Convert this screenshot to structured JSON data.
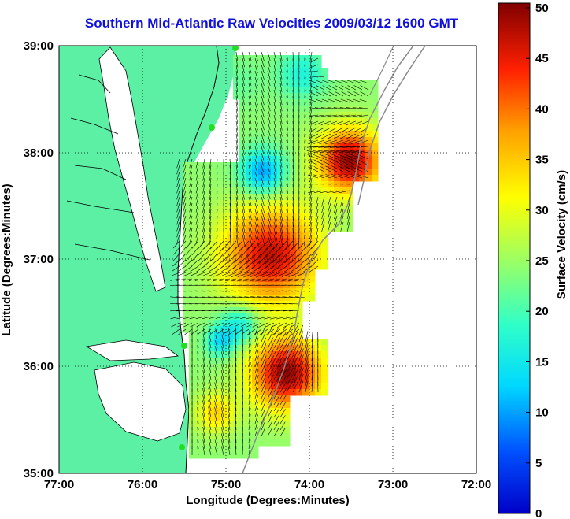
{
  "title": "Southern Mid-Atlantic Raw Velocities 2009/03/12 1600 GMT",
  "axes": {
    "x_label": "Longitude (Degrees:Minutes)",
    "y_label": "Latitude (Degrees:Minutes)",
    "x_ticks": [
      "77:00",
      "76:00",
      "75:00",
      "74:00",
      "73:00",
      "72:00"
    ],
    "y_ticks": [
      "39:00",
      "38:00",
      "37:00",
      "36:00",
      "35:00"
    ],
    "x_range_deg_west": [
      77,
      72
    ],
    "y_range_deg_north": [
      35,
      39
    ],
    "grid": "dotted"
  },
  "colorbar": {
    "label": "Surface Velocity (cm/s)",
    "ticks": [
      "50",
      "45",
      "40",
      "35",
      "30",
      "25",
      "20",
      "15",
      "10",
      "5",
      "0"
    ],
    "range": [
      0,
      50
    ],
    "colormap": "jet"
  },
  "colors": {
    "land": "#5cf0a4",
    "water": "#ffffff",
    "title": "#1010e0",
    "arrows": "#000000",
    "stations": "#22dd22",
    "bathymetry": "#8a8a8a"
  },
  "stations_count": 4
}
